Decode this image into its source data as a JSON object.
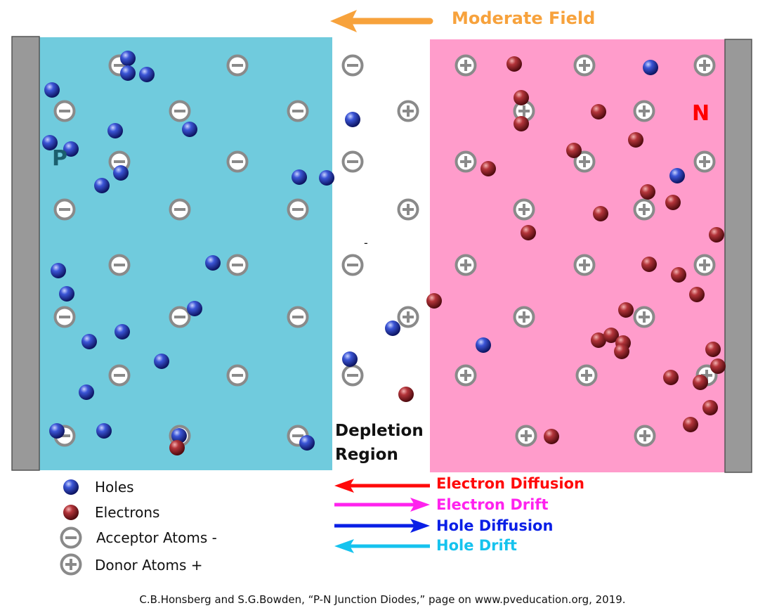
{
  "field_label": "Moderate Field",
  "p_label": "P",
  "n_label": "N",
  "depletion_label": [
    "Depletion",
    "Region"
  ],
  "stray_mark": "-",
  "legend": [
    {
      "kind": "hole",
      "text": "Holes"
    },
    {
      "kind": "electron",
      "text": "Electrons"
    },
    {
      "kind": "acceptor",
      "text": "Acceptor Atoms -"
    },
    {
      "kind": "donor",
      "text": "Donor Atoms +"
    }
  ],
  "arrows": [
    {
      "text": "Electron Diffusion",
      "color": "#ff0a0a",
      "direction": "left"
    },
    {
      "text": "Electron Drift",
      "color": "#ff22ee",
      "direction": "right"
    },
    {
      "text": "Hole Diffusion",
      "color": "#0a1fe6",
      "direction": "right"
    },
    {
      "text": "Hole Drift",
      "color": "#16c3ee",
      "direction": "left"
    }
  ],
  "caption": "C.B.Honsberg and S.G.Bowden, “P-N Junction Diodes,” page on www.pveducation.org, 2019.",
  "colors": {
    "p_region": "#70cbdd",
    "n_region": "#ff9ccb",
    "contact": "#999999",
    "field_arrow": "#f7a23c",
    "atom_ring": "#8a8a8a",
    "hole": "#2436b0",
    "electron": "#a3252b"
  }
}
